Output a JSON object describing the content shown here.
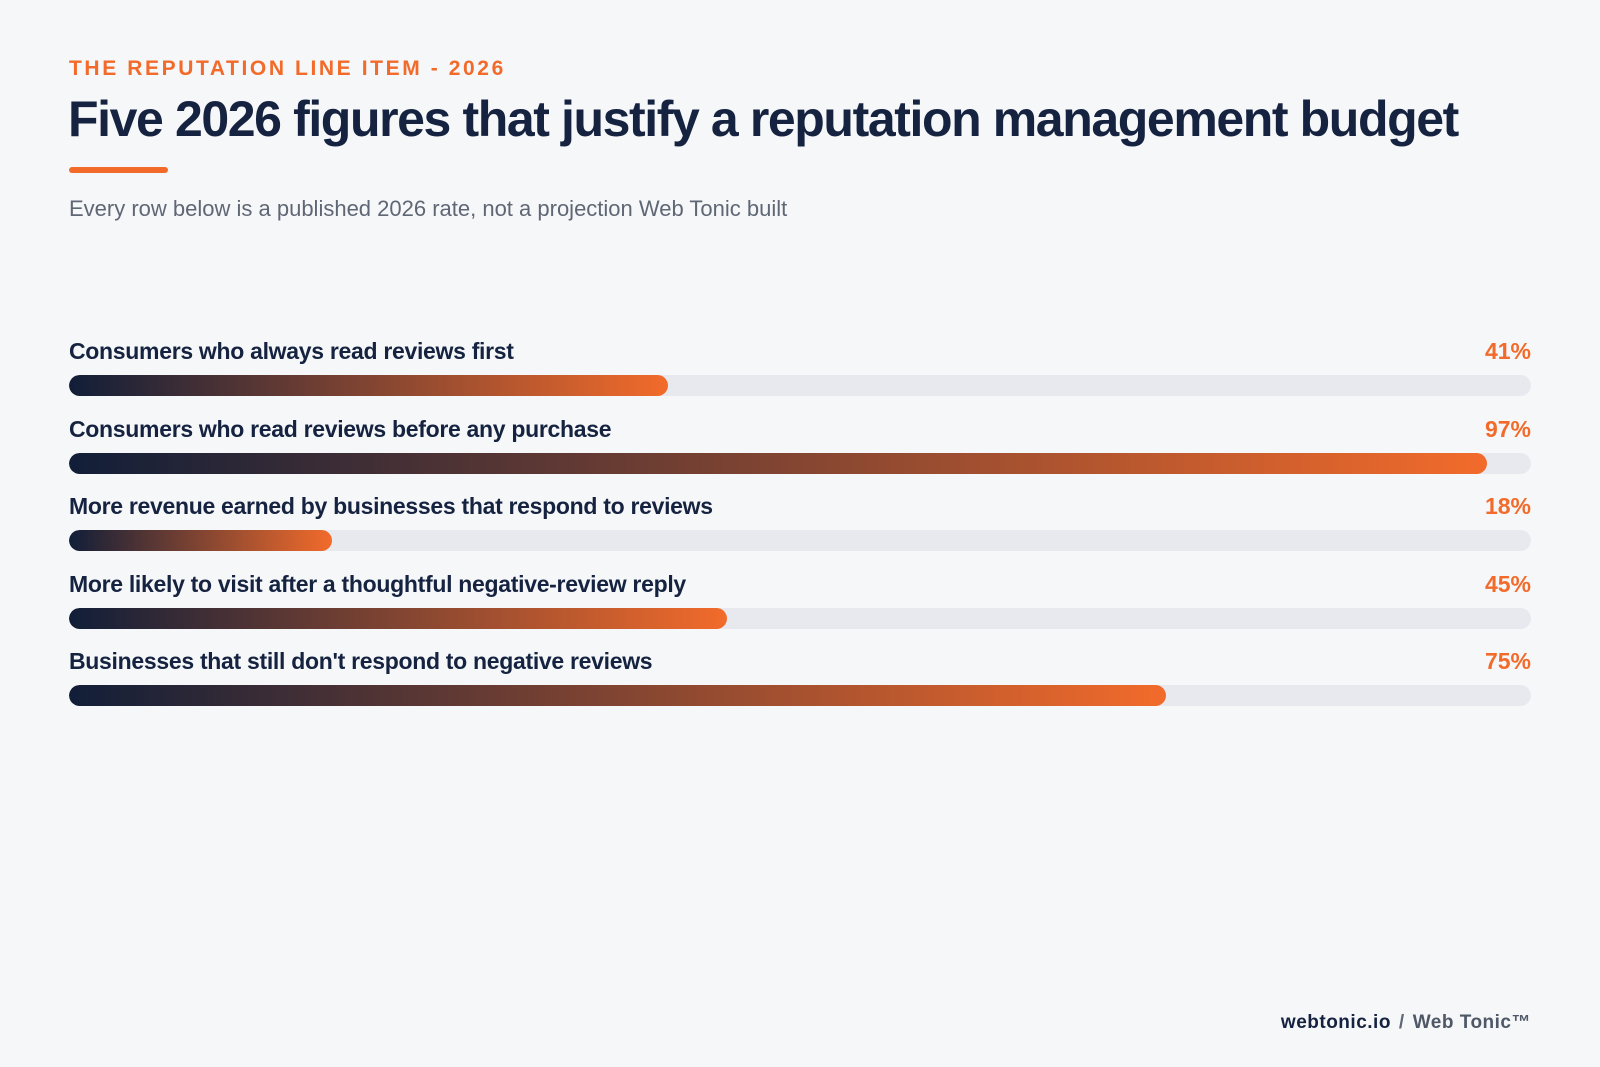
{
  "header": {
    "eyebrow": "THE REPUTATION LINE ITEM - 2026",
    "title": "Five 2026 figures that justify a reputation management budget",
    "subtitle": "Every row below is a published 2026 rate, not a projection Web Tonic built"
  },
  "colors": {
    "accent": "#f26b2b",
    "navy": "#152340",
    "bar_start": "#111e38",
    "bar_end": "#f26b2b",
    "track": "#e7e9ee",
    "background": "#f6f7f9"
  },
  "chart_data": {
    "type": "bar",
    "orientation": "horizontal",
    "xlim": [
      0,
      100
    ],
    "unit": "%",
    "grid": false,
    "categories": [
      "Consumers who always read reviews first",
      "Consumers who read reviews before any purchase",
      "More revenue earned by businesses that respond to reviews",
      "More likely to visit after a thoughtful negative-review reply",
      "Businesses that still don't respond to negative reviews"
    ],
    "values": [
      41,
      97,
      18,
      45,
      75
    ],
    "value_labels": [
      "41%",
      "97%",
      "18%",
      "45%",
      "75%"
    ]
  },
  "footer": {
    "domain": "webtonic.io",
    "separator": "/",
    "brand": "Web Tonic™"
  }
}
